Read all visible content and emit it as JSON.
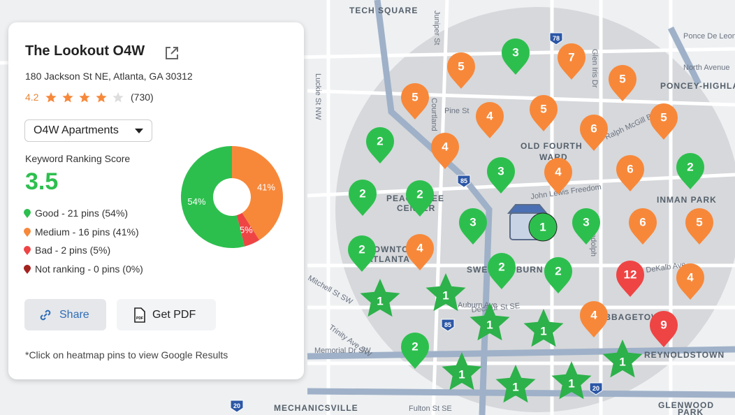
{
  "card": {
    "title": "The Lookout O4W",
    "address": "180 Jackson St NE, Atlanta, GA 30312",
    "rating": 4.2,
    "reviews": "(730)",
    "dropdown": "O4W Apartments",
    "score_label": "Keyword Ranking Score",
    "score": 3.5,
    "share": "Share",
    "pdf": "Get PDF",
    "pdf_icon": "PDF",
    "note": "*Click on heatmap pins to view Google Results"
  },
  "chart_data": {
    "type": "donut",
    "categories": [
      "Good",
      "Medium",
      "Bad",
      "Not ranking"
    ],
    "values": [
      54,
      41,
      5,
      0
    ],
    "value_labels": [
      "54%",
      "41%",
      "5%",
      null
    ],
    "colors": [
      "#2dbf4e",
      "#f7883a",
      "#ef4444",
      "#a3231f"
    ],
    "legend_labels": [
      "Good - 21 pins (54%)",
      "Medium - 16 pins (41%)",
      "Bad - 2 pins (5%)",
      "Not ranking - 0 pins (0%)"
    ]
  },
  "map": {
    "labels": [
      "TECH SQUARE",
      "OLD FOURTH",
      "WARD",
      "PEACHTREE",
      "CENTER",
      "DOWNTOWN",
      "ATLANTA",
      "SWEET AUBURN",
      "CABBAGETOWN",
      "REYNOLDSTOWN",
      "INMAN PARK",
      "PONCEY-HIGHLAND",
      "MECHANICSVILLE",
      "GLENWOOD",
      "PARK"
    ],
    "streets": [
      "Ponce De Leon",
      "North Avenue",
      "John Lewis Freedom",
      "Pine St",
      "Auburn Ave",
      "DeKalb Ave",
      "Decatur St SE",
      "Memorial Dr SW",
      "Fulton St SE",
      "Trinity Ave SW",
      "Mitchell St SW",
      "Luckie St NW",
      "Juniper St",
      "Courtland",
      "Randolph",
      "Ralph McGill Blvd",
      "Glen Iris Dr"
    ],
    "shields": [
      "85",
      "85",
      "20",
      "20",
      "78"
    ]
  },
  "pins": [
    {
      "label": "5",
      "kind": "medium"
    },
    {
      "label": "7",
      "kind": "medium"
    },
    {
      "label": "5",
      "kind": "medium"
    },
    {
      "label": "5",
      "kind": "medium"
    },
    {
      "label": "4",
      "kind": "medium"
    },
    {
      "label": "5",
      "kind": "medium"
    },
    {
      "label": "6",
      "kind": "medium"
    },
    {
      "label": "5",
      "kind": "medium"
    },
    {
      "label": "4",
      "kind": "medium"
    },
    {
      "label": "4",
      "kind": "medium"
    },
    {
      "label": "6",
      "kind": "medium"
    },
    {
      "label": "6",
      "kind": "medium"
    },
    {
      "label": "5",
      "kind": "medium"
    },
    {
      "label": "4",
      "kind": "medium"
    },
    {
      "label": "4",
      "kind": "medium"
    },
    {
      "label": "4",
      "kind": "medium"
    },
    {
      "label": "3",
      "kind": "good"
    },
    {
      "label": "2",
      "kind": "good"
    },
    {
      "label": "3",
      "kind": "good"
    },
    {
      "label": "2",
      "kind": "good"
    },
    {
      "label": "2",
      "kind": "good"
    },
    {
      "label": "2",
      "kind": "good"
    },
    {
      "label": "3",
      "kind": "good"
    },
    {
      "label": "3",
      "kind": "good"
    },
    {
      "label": "2",
      "kind": "good"
    },
    {
      "label": "2",
      "kind": "good"
    },
    {
      "label": "2",
      "kind": "good"
    },
    {
      "label": "2",
      "kind": "good"
    },
    {
      "label": "12",
      "kind": "bad"
    },
    {
      "label": "9",
      "kind": "bad"
    },
    {
      "label": "1",
      "kind": "top"
    },
    {
      "label": "1",
      "kind": "top"
    },
    {
      "label": "1",
      "kind": "top"
    },
    {
      "label": "1",
      "kind": "top"
    },
    {
      "label": "1",
      "kind": "top"
    },
    {
      "label": "1",
      "kind": "top"
    },
    {
      "label": "1",
      "kind": "top"
    },
    {
      "label": "1",
      "kind": "top"
    },
    {
      "label": "1",
      "kind": "business"
    }
  ]
}
